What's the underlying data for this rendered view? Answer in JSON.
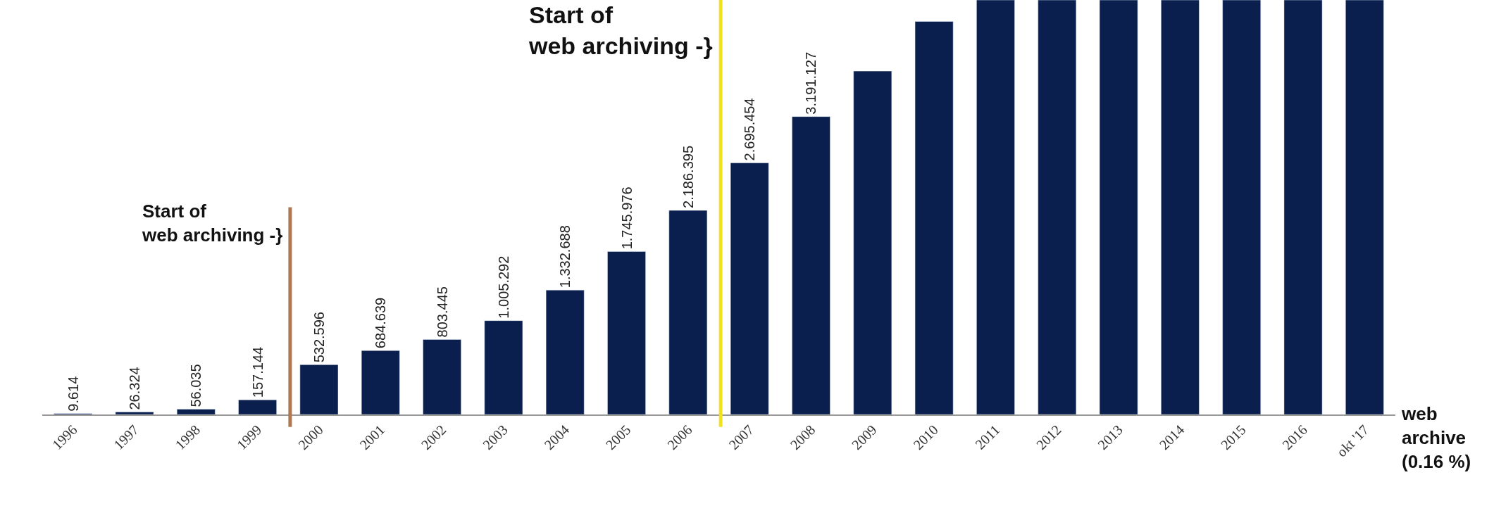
{
  "chart_data": {
    "type": "bar",
    "categories": [
      "1996",
      "1997",
      "1998",
      "1999",
      "2000",
      "2001",
      "2002",
      "2003",
      "2004",
      "2005",
      "2006",
      "2007",
      "2008",
      "2009",
      "2010",
      "2011",
      "2012",
      "2013",
      "2014",
      "2015",
      "2016",
      "okt '17"
    ],
    "values": [
      9614,
      26324,
      56035,
      157144,
      532596,
      684639,
      803445,
      1005292,
      1332688,
      1745976,
      2186395,
      2695454,
      3191127,
      3678000,
      4210000,
      4440000,
      4440000,
      4440000,
      4440000,
      4440000,
      4440000,
      4440000
    ],
    "value_labels": [
      "9.614",
      "26.324",
      "56.035",
      "157.144",
      "532.596",
      "684.639",
      "803.445",
      "1.005.292",
      "1.332.688",
      "1.745.976",
      "2.186.395",
      "2.695.454",
      "3.191.127",
      null,
      null,
      null,
      null,
      null,
      null,
      null,
      null,
      null
    ],
    "color": "#0b1f4e",
    "ylim": [
      0,
      4440000
    ],
    "tick_labels": "x",
    "ref_lines": [
      {
        "axis": "x",
        "value": "2000",
        "label": "Start of\nweb archiving -}",
        "color": "#b07850"
      },
      {
        "axis": "x",
        "value": "2007",
        "label": "Start of\nweb archiving -}",
        "color": "#f2e21c"
      }
    ],
    "annotations": [
      "web\narchive\n(0.16 %)"
    ]
  }
}
